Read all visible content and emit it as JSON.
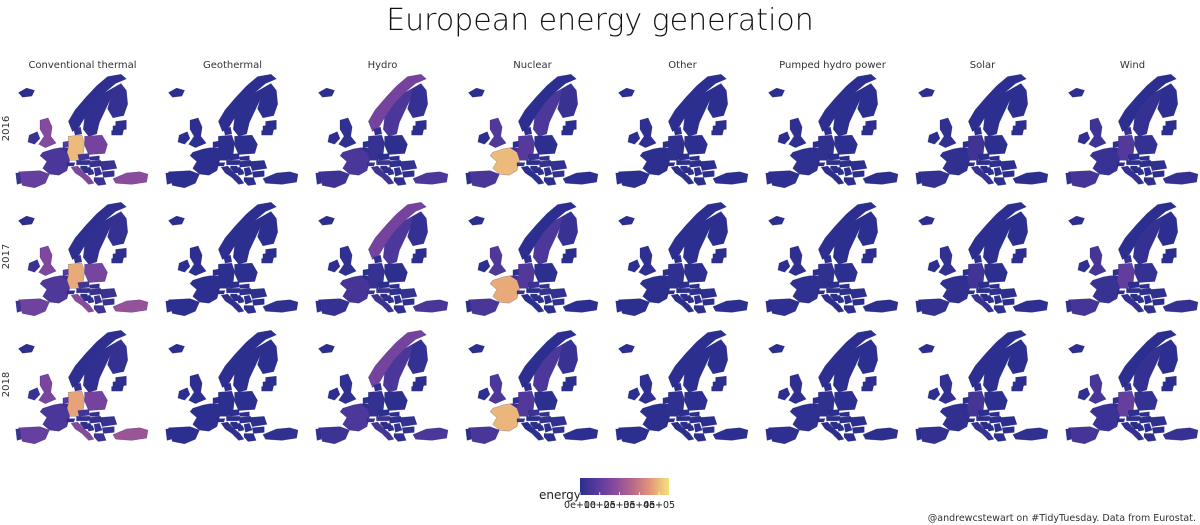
{
  "chart_data": {
    "type": "choropleth-facet",
    "title": "European energy generation",
    "caption": "@andrewcstewart on #TidyTuesday. Data from Eurostat.",
    "columns": [
      "Conventional thermal",
      "Geothermal",
      "Hydro",
      "Nuclear",
      "Other",
      "Pumped hydro power",
      "Solar",
      "Wind"
    ],
    "rows": [
      "2016",
      "2017",
      "2018"
    ],
    "legend": {
      "title": "energy",
      "position": "bottom",
      "tick_labels": [
        "0e+00",
        "1e+05",
        "2e+05",
        "3e+05",
        "4e+05"
      ],
      "tick_values": [
        0,
        100000,
        200000,
        300000,
        400000
      ],
      "range": [
        0,
        450000
      ],
      "colors": [
        "#2c2f8f",
        "#5a3a9e",
        "#8a4b9e",
        "#b96a8a",
        "#e69a7a",
        "#f3e27a"
      ]
    },
    "series": [
      {
        "name": "Conventional thermal",
        "values": {
          "2016": {
            "DE": 400000,
            "UK": 170000,
            "PL": 140000,
            "IT": 160000,
            "TR": 180000,
            "FR": 60000,
            "ES": 110000,
            "NL": 80000,
            "CZ": 40000,
            "RO": 25000,
            "GR": 30000,
            "BE": 30000,
            "NO": 3000,
            "SE": 10000,
            "FI": 15000,
            "PT": 30000,
            "IE": 25000,
            "DK": 15000,
            "BG": 20000,
            "HU": 15000,
            "AT": 20000,
            "CH": 4000,
            "SK": 10000,
            "BA": 12000,
            "RS": 25000,
            "LT": 2000,
            "LV": 3000,
            "EE": 10000,
            "HR": 7000,
            "SI": 5000
          },
          "2017": {
            "DE": 380000,
            "UK": 160000,
            "PL": 145000,
            "IT": 180000,
            "TR": 200000,
            "FR": 70000,
            "ES": 130000,
            "NL": 85000,
            "CZ": 42000,
            "RO": 26000,
            "GR": 35000,
            "BE": 30000,
            "NO": 3000,
            "SE": 10000,
            "FI": 15000,
            "PT": 38000,
            "IE": 25000,
            "DK": 14000,
            "BG": 23000,
            "HU": 16000,
            "AT": 20000,
            "CH": 4000,
            "SK": 10000,
            "BA": 12000,
            "RS": 25000,
            "LT": 2000,
            "LV": 3000,
            "EE": 10000,
            "HR": 7000,
            "SI": 5000
          },
          "2018": {
            "DE": 370000,
            "UK": 150000,
            "PL": 140000,
            "IT": 170000,
            "TR": 210000,
            "FR": 60000,
            "ES": 115000,
            "NL": 80000,
            "CZ": 40000,
            "RO": 24000,
            "GR": 32000,
            "BE": 30000,
            "NO": 3000,
            "SE": 10000,
            "FI": 15000,
            "PT": 30000,
            "IE": 24000,
            "DK": 13000,
            "BG": 22000,
            "HU": 15000,
            "AT": 19000,
            "CH": 4000,
            "SK": 10000,
            "BA": 12000,
            "RS": 25000,
            "LT": 2000,
            "LV": 3000,
            "EE": 10000,
            "HR": 7000,
            "SI": 5000
          }
        }
      },
      {
        "name": "Geothermal",
        "values": {
          "2016": {
            "IT": 6000,
            "TR": 5000,
            "DE": 200,
            "PT": 200,
            "FR": 100
          },
          "2017": {
            "IT": 6000,
            "TR": 6000,
            "DE": 200,
            "PT": 200,
            "FR": 100
          },
          "2018": {
            "IT": 6000,
            "TR": 7000,
            "DE": 200,
            "PT": 200,
            "FR": 100
          }
        }
      },
      {
        "name": "Hydro",
        "values": {
          "2016": {
            "NO": 140000,
            "SE": 60000,
            "FR": 60000,
            "TR": 65000,
            "IT": 42000,
            "ES": 36000,
            "AT": 38000,
            "CH": 34000,
            "DE": 20000,
            "FI": 15000,
            "RO": 18000,
            "PT": 15000,
            "RS": 10000,
            "BA": 6000,
            "HR": 7000,
            "SI": 4000,
            "BG": 4000,
            "GR": 5000,
            "SK": 4000,
            "UK": 5000,
            "PL": 2000,
            "CZ": 2000,
            "LV": 2500
          },
          "2017": {
            "NO": 140000,
            "SE": 64000,
            "FR": 50000,
            "TR": 58000,
            "IT": 36000,
            "ES": 18000,
            "AT": 37000,
            "CH": 33000,
            "DE": 20000,
            "FI": 15000,
            "RO": 14000,
            "PT": 7000,
            "RS": 10000,
            "BA": 5000,
            "HR": 5000,
            "SI": 4000,
            "BG": 3000,
            "GR": 4000,
            "SK": 4000,
            "UK": 5000,
            "PL": 2000,
            "CZ": 2000,
            "LV": 4000
          },
          "2018": {
            "NO": 138000,
            "SE": 61000,
            "FR": 63000,
            "TR": 60000,
            "IT": 48000,
            "ES": 34000,
            "AT": 37000,
            "CH": 34000,
            "DE": 17000,
            "FI": 13000,
            "RO": 17000,
            "PT": 12000,
            "RS": 11000,
            "BA": 6000,
            "HR": 7000,
            "SI": 4000,
            "BG": 5000,
            "GR": 5000,
            "SK": 4000,
            "UK": 5000,
            "PL": 2000,
            "CZ": 2000,
            "LV": 2500
          }
        }
      },
      {
        "name": "Nuclear",
        "values": {
          "2016": {
            "FR": 400000,
            "UK": 72000,
            "DE": 85000,
            "SE": 63000,
            "ES": 58000,
            "FI": 23000,
            "BE": 43000,
            "CZ": 24000,
            "CH": 21000,
            "SK": 15000,
            "HU": 16000,
            "BG": 16000,
            "RO": 11000,
            "SI": 5000,
            "NL": 4000
          },
          "2017": {
            "FR": 380000,
            "UK": 70000,
            "DE": 76000,
            "SE": 65000,
            "ES": 58000,
            "FI": 22000,
            "BE": 42000,
            "CZ": 28000,
            "CH": 20000,
            "SK": 15000,
            "HU": 16000,
            "BG": 15000,
            "RO": 11000,
            "SI": 6000,
            "NL": 3000
          },
          "2018": {
            "FR": 395000,
            "UK": 65000,
            "DE": 76000,
            "SE": 66000,
            "ES": 56000,
            "FI": 22000,
            "BE": 27000,
            "CZ": 30000,
            "CH": 25000,
            "SK": 15000,
            "HU": 16000,
            "BG": 16000,
            "RO": 11000,
            "SI": 6000,
            "NL": 3000
          }
        }
      },
      {
        "name": "Other",
        "values": {
          "2016": {
            "DE": 5000,
            "UK": 3000,
            "IT": 2000,
            "NL": 2000,
            "FR": 1000
          },
          "2017": {
            "DE": 5000,
            "UK": 3000,
            "IT": 2000,
            "NL": 2000,
            "FR": 1000
          },
          "2018": {
            "DE": 5000,
            "UK": 3000,
            "IT": 2000,
            "NL": 2000,
            "FR": 1000
          }
        }
      },
      {
        "name": "Pumped hydro power",
        "values": {
          "2016": {
            "DE": 6000,
            "FR": 5000,
            "IT": 2000,
            "AT": 4000,
            "ES": 3000,
            "CH": 4000,
            "UK": 3000
          },
          "2017": {
            "DE": 6000,
            "FR": 5000,
            "IT": 2000,
            "AT": 4000,
            "ES": 3000,
            "CH": 4000,
            "UK": 3000
          },
          "2018": {
            "DE": 6000,
            "FR": 5000,
            "IT": 2000,
            "AT": 4000,
            "ES": 3000,
            "CH": 4000,
            "UK": 3000
          }
        }
      },
      {
        "name": "Solar",
        "values": {
          "2016": {
            "DE": 38000,
            "IT": 22000,
            "ES": 13000,
            "FR": 8000,
            "UK": 10000,
            "GR": 4000,
            "TR": 1000,
            "BE": 3000,
            "NL": 2000
          },
          "2017": {
            "DE": 39000,
            "IT": 24000,
            "ES": 14000,
            "FR": 9000,
            "UK": 11000,
            "GR": 4000,
            "TR": 3000,
            "BE": 3000,
            "NL": 2000
          },
          "2018": {
            "DE": 46000,
            "IT": 23000,
            "ES": 12000,
            "FR": 10000,
            "UK": 12000,
            "GR": 4000,
            "TR": 8000,
            "BE": 4000,
            "NL": 3000
          }
        }
      },
      {
        "name": "Wind",
        "values": {
          "2016": {
            "DE": 78000,
            "ES": 48000,
            "UK": 37000,
            "FR": 21000,
            "IT": 17000,
            "TR": 16000,
            "SE": 15000,
            "PL": 13000,
            "DK": 13000,
            "PT": 12000,
            "NL": 8000,
            "IE": 6000,
            "RO": 6000,
            "GR": 5000,
            "AT": 5000,
            "BE": 5000
          },
          "2017": {
            "DE": 106000,
            "ES": 48000,
            "UK": 50000,
            "FR": 24000,
            "IT": 17000,
            "TR": 18000,
            "SE": 17000,
            "PL": 15000,
            "DK": 15000,
            "PT": 12000,
            "NL": 10000,
            "IE": 7000,
            "RO": 7000,
            "GR": 6000,
            "AT": 6000,
            "BE": 6000
          },
          "2018": {
            "DE": 110000,
            "ES": 50000,
            "UK": 57000,
            "FR": 28000,
            "IT": 18000,
            "TR": 20000,
            "SE": 17000,
            "PL": 13000,
            "DK": 14000,
            "PT": 12000,
            "NL": 10000,
            "IE": 8000,
            "RO": 7000,
            "GR": 6000,
            "AT": 6000,
            "BE": 7000
          }
        }
      }
    ]
  }
}
